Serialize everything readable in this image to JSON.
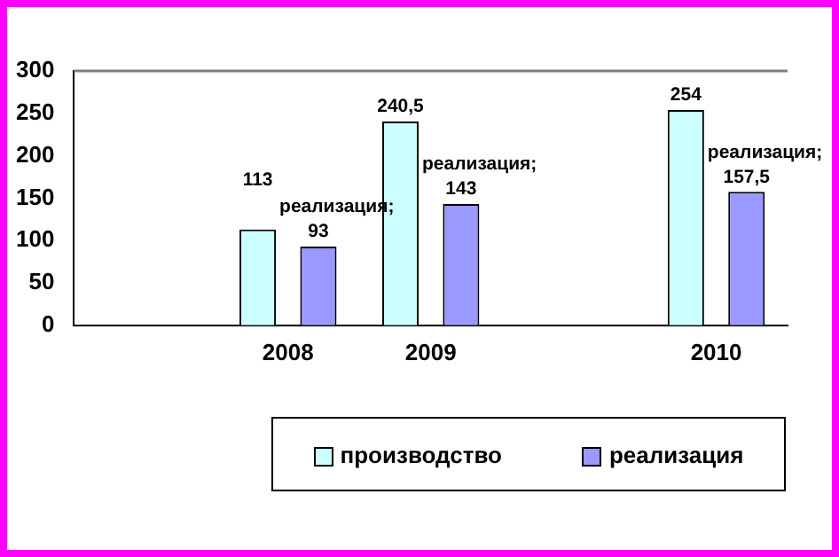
{
  "chart_data": {
    "type": "bar",
    "categories": [
      null,
      "2008",
      "2009",
      null,
      "2010"
    ],
    "series": [
      {
        "name": "производство",
        "color": "#ccffff",
        "values": [
          null,
          113,
          240.5,
          null,
          254
        ],
        "value_labels": [
          null,
          "113",
          "240,5",
          null,
          "254"
        ]
      },
      {
        "name": "реализация",
        "color": "#9999ff",
        "values": [
          null,
          93,
          143,
          null,
          157.5
        ],
        "value_labels": [
          null,
          "реализация; 93",
          "реализация; 143",
          null,
          "реализация; 157,5"
        ]
      }
    ],
    "ylim": [
      0,
      300
    ],
    "yticks": [
      0,
      50,
      100,
      150,
      200,
      250,
      300
    ],
    "grid": false,
    "legend": "bottom right"
  }
}
